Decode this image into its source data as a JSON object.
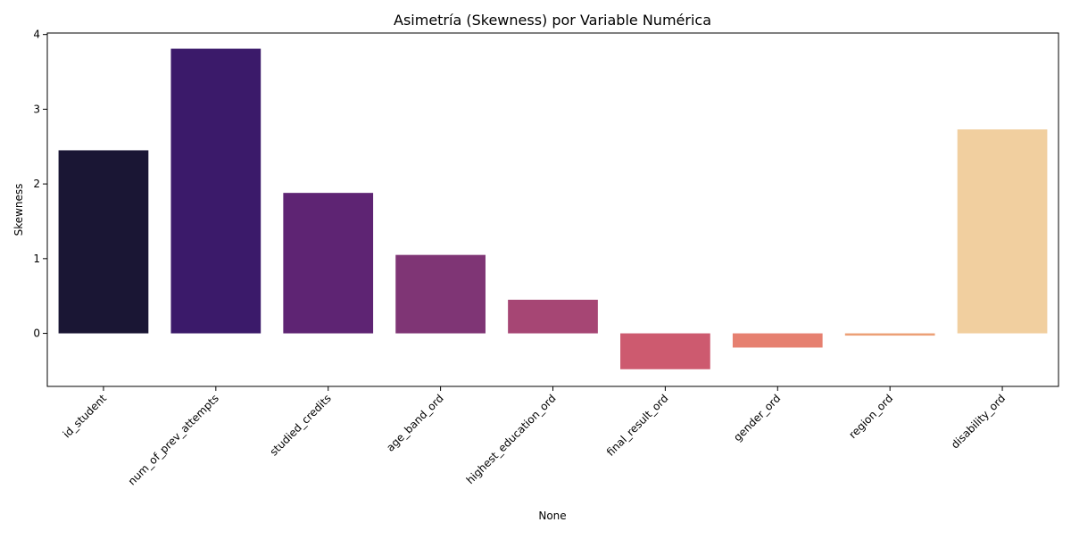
{
  "chart_data": {
    "type": "bar",
    "title": "Asimetría (Skewness) por Variable Numérica",
    "xlabel": "None",
    "ylabel": "Skewness",
    "ylim": [
      -0.71,
      4.02
    ],
    "yticks": [
      0,
      1,
      2,
      3,
      4
    ],
    "grid": false,
    "legend": "none",
    "categories": [
      "id_student",
      "num_of_prev_attempts",
      "studied_credits",
      "age_band_ord",
      "highest_education_ord",
      "final_result_ord",
      "gender_ord",
      "region_ord",
      "disability_ord"
    ],
    "values": [
      2.45,
      3.81,
      1.88,
      1.05,
      0.45,
      -0.48,
      -0.19,
      -0.03,
      2.73
    ],
    "colors": [
      "#1a1634",
      "#3b1a6a",
      "#5e2473",
      "#7f3575",
      "#a64674",
      "#cd5a6f",
      "#e68070",
      "#eca076",
      "#f1cf9f"
    ]
  }
}
